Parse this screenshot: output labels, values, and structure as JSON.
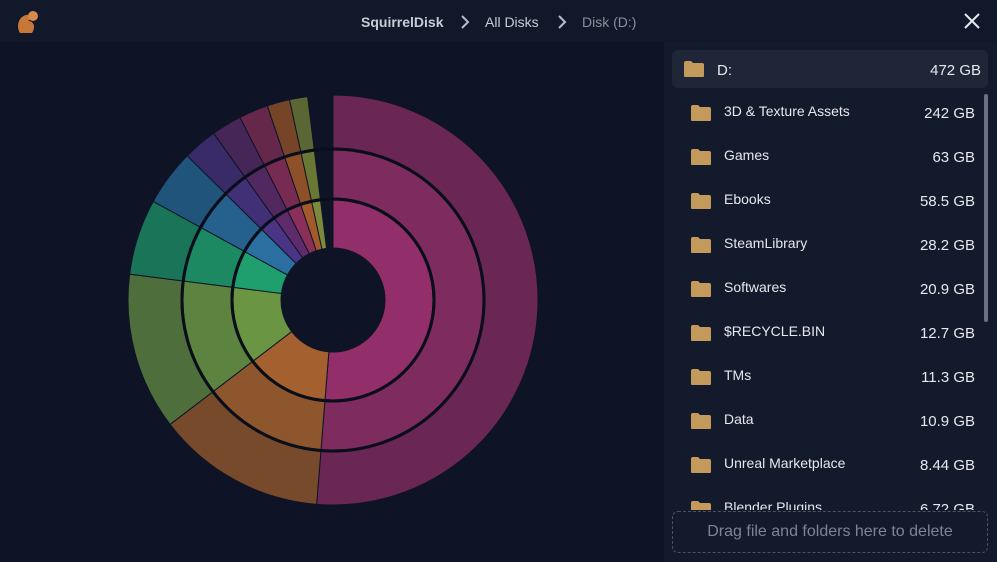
{
  "titlebar": {
    "app": "SquirrelDisk",
    "breadcrumbs": [
      "All Disks",
      "Disk (D:)"
    ]
  },
  "root": {
    "name": "D:",
    "size": {
      "value": 472,
      "label": "472 GB"
    }
  },
  "items": [
    {
      "name": "3D & Texture Assets",
      "size": {
        "value": 242,
        "label": "242 GB"
      },
      "color": "#922f6a"
    },
    {
      "name": "Games",
      "size": {
        "value": 63,
        "label": "63 GB"
      },
      "color": "#a4612f"
    },
    {
      "name": "Ebooks",
      "size": {
        "value": 58.5,
        "label": "58.5 GB"
      },
      "color": "#6a9644"
    },
    {
      "name": "SteamLibrary",
      "size": {
        "value": 28.2,
        "label": "28.2 GB"
      },
      "color": "#1f9e6e"
    },
    {
      "name": "Softwares",
      "size": {
        "value": 20.9,
        "label": "20.9 GB"
      },
      "color": "#2a6fa0"
    },
    {
      "name": "$RECYCLE.BIN",
      "size": {
        "value": 12.7,
        "label": "12.7 GB"
      },
      "color": "#4a3585"
    },
    {
      "name": "TMs",
      "size": {
        "value": 11.3,
        "label": "11.3 GB"
      },
      "color": "#5e2c6c"
    },
    {
      "name": "Data",
      "size": {
        "value": 10.9,
        "label": "10.9 GB"
      },
      "color": "#8a2f5a"
    },
    {
      "name": "Unreal Marketplace",
      "size": {
        "value": 8.44,
        "label": "8.44 GB"
      },
      "color": "#a35a2a"
    },
    {
      "name": "Blender Plugins",
      "size": {
        "value": 6.72,
        "label": "6.72 GB"
      },
      "color": "#7a8a3a"
    }
  ],
  "dropzone": "Drag file and folders here to delete"
}
